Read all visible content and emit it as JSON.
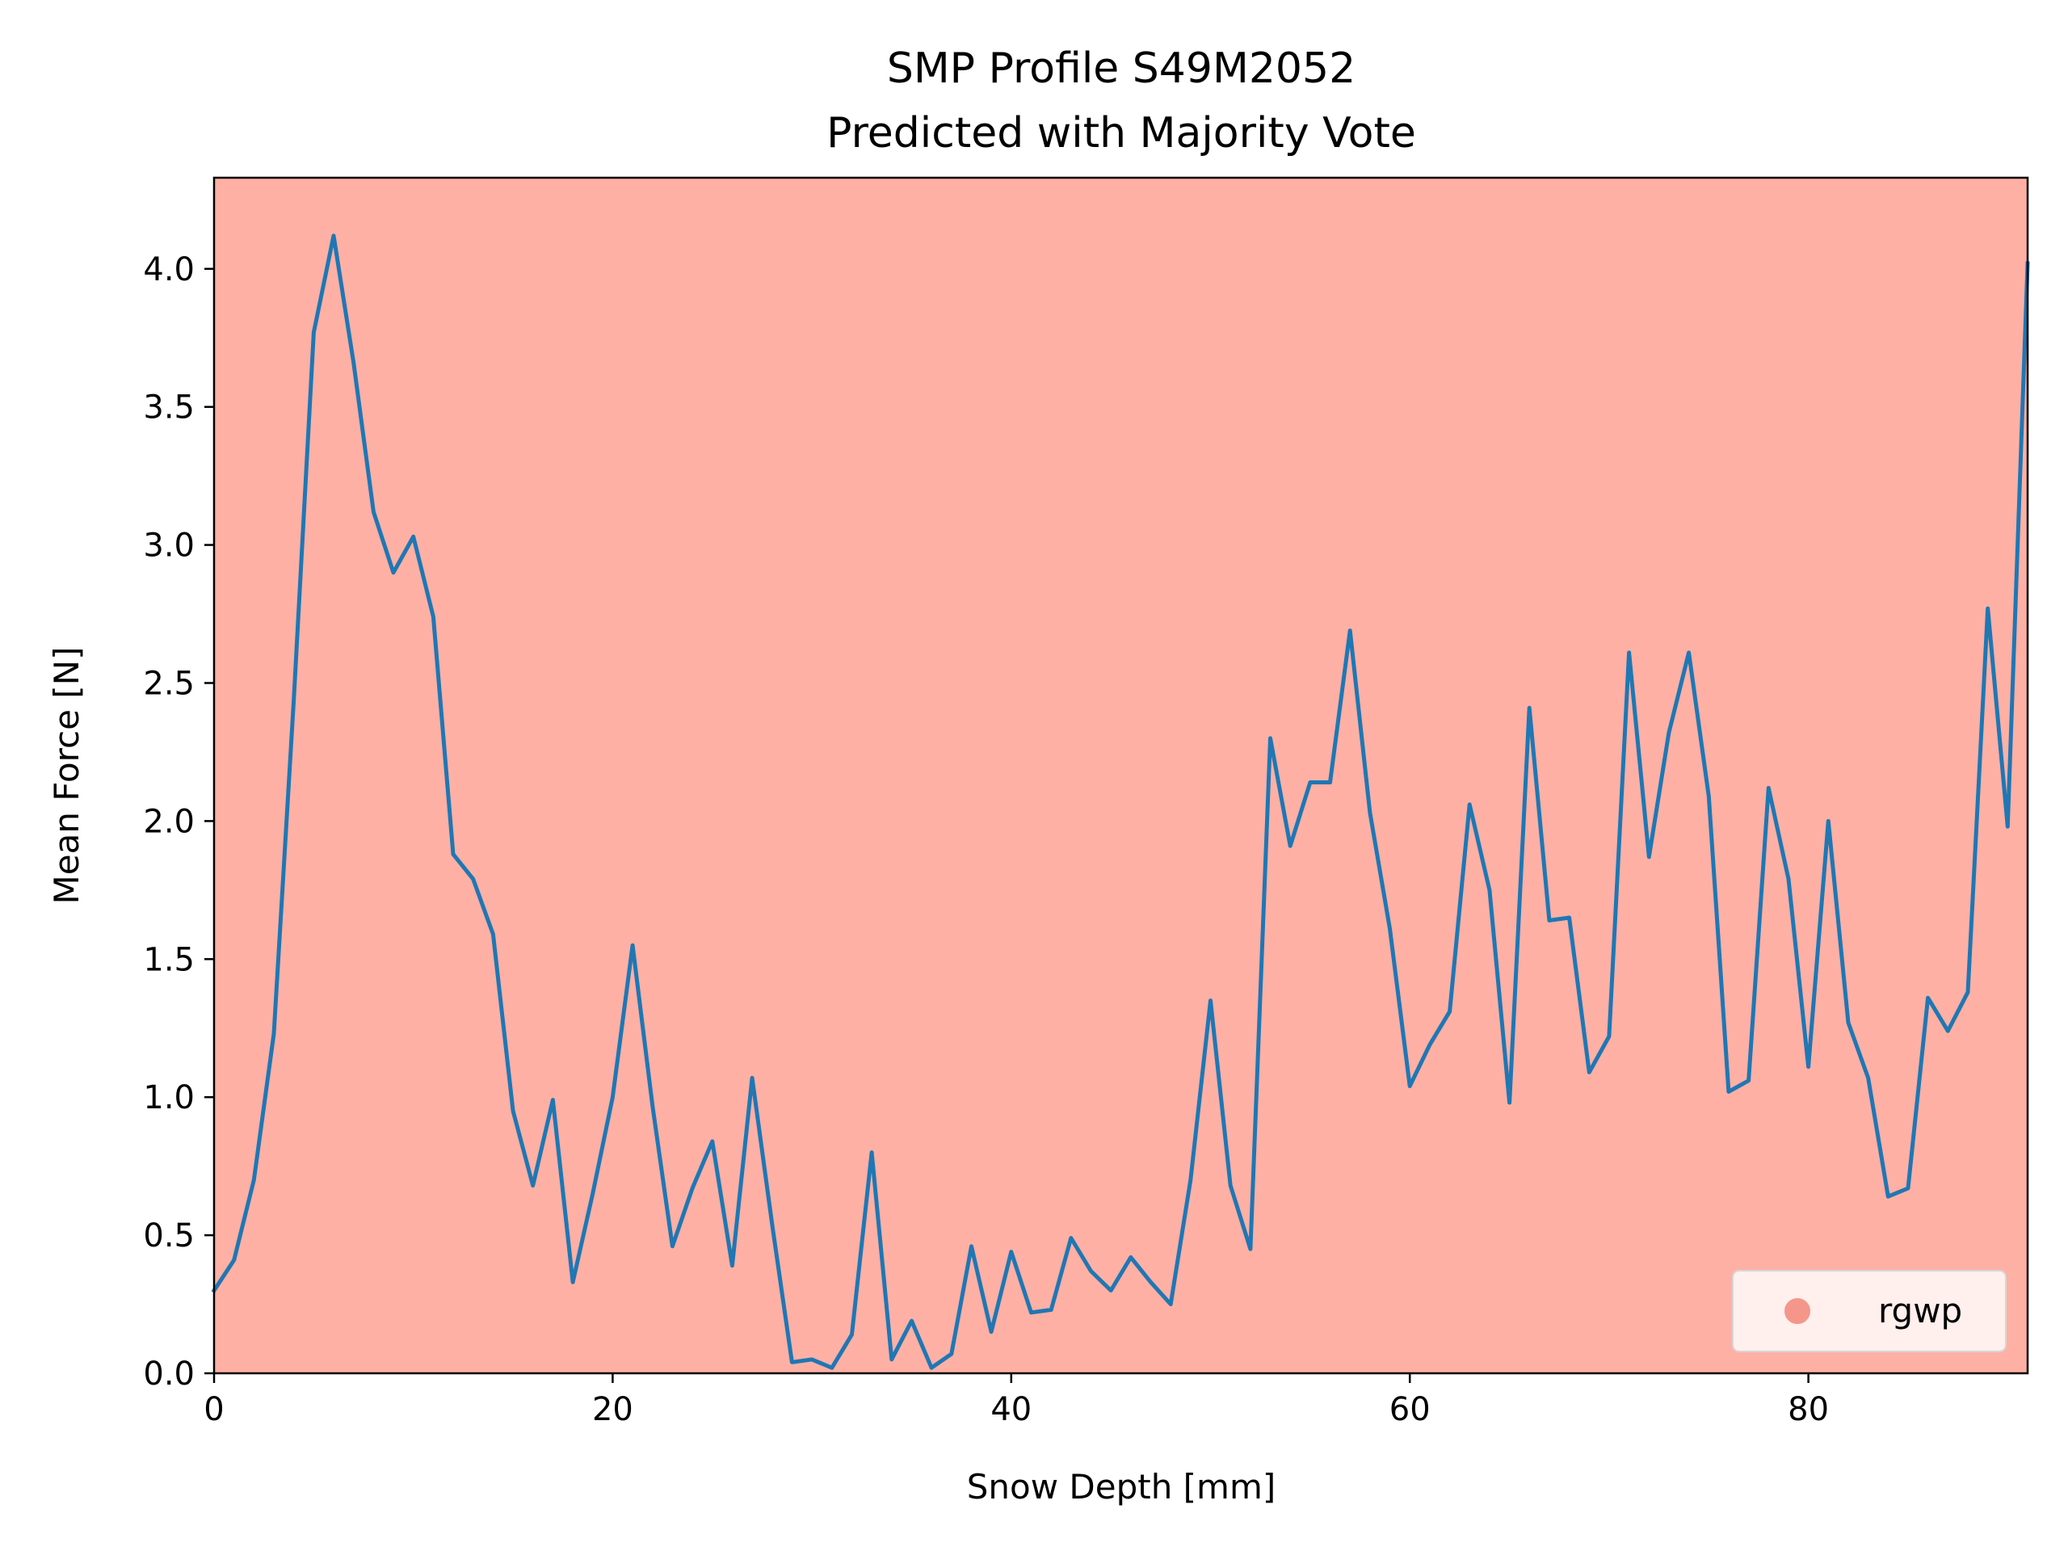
{
  "chart_data": {
    "type": "line",
    "title": "SMP Profile S49M2052",
    "subtitle": "Predicted with Majority Vote",
    "xlabel": "Snow Depth [mm]",
    "ylabel": "Mean Force [N]",
    "xlim": [
      0,
      91
    ],
    "ylim": [
      0,
      4.33
    ],
    "xticks": [
      0,
      20,
      40,
      60,
      80
    ],
    "xtick_labels": [
      "0",
      "20",
      "40",
      "60",
      "80"
    ],
    "yticks": [
      0,
      0.5,
      1,
      1.5,
      2,
      2.5,
      3,
      3.5,
      4
    ],
    "ytick_labels": [
      "0.0",
      "0.5",
      "1.0",
      "1.5",
      "2.0",
      "2.5",
      "3.0",
      "3.5",
      "4.0"
    ],
    "grid": false,
    "background_color": "#ffb0a4",
    "line_color": "#1f77b4",
    "legend": {
      "placement": "lower-right",
      "entries": [
        {
          "label": "rgwp",
          "color": "#f4978a",
          "marker": "circle"
        }
      ]
    },
    "series": [
      {
        "x": [
          0,
          1,
          2,
          3,
          4,
          5,
          6,
          7,
          8,
          9,
          10,
          11,
          12,
          13,
          14,
          15,
          16,
          17,
          18,
          19,
          20,
          21,
          22,
          23,
          24,
          25,
          26,
          27,
          28,
          29,
          30,
          31,
          32,
          33,
          34,
          35,
          36,
          37,
          38,
          39,
          40,
          41,
          42,
          43,
          44,
          45,
          46,
          47,
          48,
          49,
          50,
          51,
          52,
          53,
          54,
          55,
          56,
          57,
          58,
          59,
          60,
          61,
          62,
          63,
          64,
          65,
          66,
          67,
          68,
          69,
          70,
          71,
          72,
          73,
          74,
          75,
          76,
          77,
          78,
          79,
          80,
          81,
          82,
          83,
          84,
          85,
          86,
          87,
          88,
          89,
          90,
          91
        ],
        "values": [
          0.3,
          0.41,
          0.7,
          1.23,
          2.44,
          3.77,
          4.12,
          3.66,
          3.12,
          2.9,
          3.03,
          2.74,
          1.88,
          1.79,
          1.59,
          0.95,
          0.68,
          0.99,
          0.33,
          0.65,
          1.0,
          1.55,
          0.97,
          0.46,
          0.67,
          0.84,
          0.39,
          1.07,
          0.54,
          0.04,
          0.05,
          0.02,
          0.14,
          0.8,
          0.05,
          0.19,
          0.02,
          0.07,
          0.46,
          0.15,
          0.44,
          0.22,
          0.23,
          0.49,
          0.37,
          0.3,
          0.42,
          0.33,
          0.25,
          0.7,
          1.35,
          0.68,
          0.45,
          2.3,
          1.91,
          2.14,
          2.14,
          2.69,
          2.03,
          1.61,
          1.04,
          1.19,
          1.31,
          2.06,
          1.75,
          0.98,
          2.41,
          1.64,
          1.65,
          1.09,
          1.22,
          2.61,
          1.87,
          2.32,
          2.61,
          2.09,
          1.02,
          1.06,
          2.12,
          1.79,
          1.11,
          2.0,
          1.27,
          1.07,
          0.64,
          0.67,
          1.36,
          1.24,
          1.38,
          2.77,
          1.98,
          4.02
        ]
      }
    ]
  }
}
